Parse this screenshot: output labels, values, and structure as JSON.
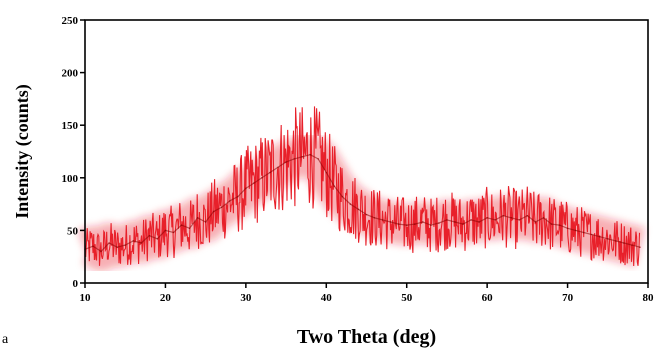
{
  "chart_data": {
    "type": "line",
    "title": "",
    "xlabel": "Two Theta (deg)",
    "ylabel": "Intensity (counts)",
    "xlim": [
      10,
      80
    ],
    "ylim": [
      0,
      250
    ],
    "xticks": [
      10,
      20,
      30,
      40,
      50,
      60,
      70,
      80
    ],
    "yticks": [
      0,
      50,
      100,
      150,
      200,
      250
    ],
    "grid": false,
    "legend": "none",
    "series_color": "#e8202a",
    "series_dark_color": "#8b0000",
    "series": [
      {
        "x": [
          10,
          11,
          12,
          13,
          14,
          15,
          16,
          17,
          18,
          19,
          20,
          21,
          22,
          23,
          24,
          25,
          26,
          27,
          28,
          29,
          30,
          31,
          32,
          33,
          34,
          35,
          36,
          37,
          38,
          39,
          40,
          41,
          42,
          43,
          44,
          45,
          46,
          47,
          48,
          49,
          50,
          51,
          52,
          53,
          54,
          55,
          56,
          57,
          58,
          59,
          60,
          61,
          62,
          63,
          64,
          65,
          66,
          67,
          68,
          69,
          70,
          71,
          72,
          73,
          74,
          75,
          76,
          77,
          78,
          79
        ],
        "y": [
          32,
          35,
          30,
          38,
          34,
          36,
          40,
          38,
          45,
          42,
          50,
          48,
          55,
          52,
          62,
          58,
          68,
          72,
          78,
          82,
          90,
          95,
          100,
          105,
          110,
          115,
          118,
          120,
          122,
          118,
          105,
          92,
          82,
          75,
          70,
          65,
          62,
          60,
          58,
          56,
          55,
          56,
          58,
          55,
          57,
          60,
          58,
          56,
          60,
          58,
          62,
          60,
          64,
          62,
          60,
          64,
          58,
          62,
          56,
          55,
          52,
          50,
          48,
          46,
          44,
          42,
          40,
          38,
          36,
          34
        ]
      }
    ]
  },
  "stray_mark": "a"
}
